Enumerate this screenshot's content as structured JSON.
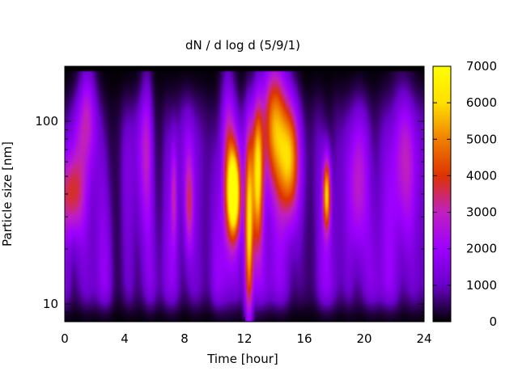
{
  "chart_data": {
    "type": "heatmap",
    "title": "dN / d log d (5/9/1)",
    "xlabel": "Time [hour]",
    "ylabel": "Particle size [nm]",
    "xlim": [
      0,
      24
    ],
    "ylim": [
      8,
      200
    ],
    "yscale": "log",
    "xticks": [
      0,
      4,
      8,
      12,
      16,
      20,
      24
    ],
    "yticks": [
      10,
      100
    ],
    "colorbar": {
      "min": 0,
      "max": 7000,
      "ticks": [
        0,
        1000,
        2000,
        3000,
        4000,
        5000,
        6000,
        7000
      ],
      "palette": [
        "#000000",
        "#6a00c8",
        "#9d00ff",
        "#c020c0",
        "#dd3300",
        "#f08000",
        "#ffe000",
        "#ffff00"
      ]
    },
    "background_level": 1800,
    "upper_band": {
      "y_from": 190,
      "y_to": 200,
      "value": 0
    },
    "features": [
      {
        "t": 0.4,
        "d": 40,
        "peak": 2600,
        "t_width": 0.6,
        "d_log_width": 0.16
      },
      {
        "t": 1.5,
        "d": 110,
        "peak": 2200,
        "t_width": 0.4,
        "d_log_width": 0.2
      },
      {
        "t": 5.5,
        "d": 80,
        "peak": 1500,
        "t_width": 0.3,
        "d_log_width": 0.3
      },
      {
        "t": 7.3,
        "d": 40,
        "peak": 1800,
        "t_width": 0.15,
        "d_log_width": 0.2
      },
      {
        "t": 8.3,
        "d": 35,
        "peak": 2000,
        "t_width": 0.2,
        "d_log_width": 0.18
      },
      {
        "t": 10.9,
        "d": 60,
        "peak": 2400,
        "t_width": 0.35,
        "d_log_width": 0.35
      },
      {
        "t": 11.3,
        "d": 40,
        "peak": 6300,
        "t_width": 0.3,
        "d_log_width": 0.16
      },
      {
        "t": 12.3,
        "d": 25,
        "peak": 5200,
        "t_width": 0.2,
        "d_log_width": 0.35
      },
      {
        "t": 12.9,
        "d": 50,
        "peak": 4600,
        "t_width": 0.25,
        "d_log_width": 0.28
      },
      {
        "t": 14.0,
        "d": 100,
        "peak": 4400,
        "t_width": 0.6,
        "d_log_width": 0.25
      },
      {
        "t": 15.0,
        "d": 60,
        "peak": 4200,
        "t_width": 0.5,
        "d_log_width": 0.22
      },
      {
        "t": 17.5,
        "d": 40,
        "peak": 4900,
        "t_width": 0.18,
        "d_log_width": 0.14
      },
      {
        "t": 19.5,
        "d": 40,
        "peak": 1500,
        "t_width": 0.4,
        "d_log_width": 0.25
      },
      {
        "t": 22.5,
        "d": 60,
        "peak": 1400,
        "t_width": 0.6,
        "d_log_width": 0.3
      }
    ],
    "dark_zones": [
      {
        "t": 3.5,
        "t_width": 0.4,
        "depth": 0.6
      },
      {
        "t": 6.3,
        "t_width": 0.3,
        "depth": 0.4
      },
      {
        "t": 9.6,
        "t_width": 0.3,
        "depth": 0.4
      },
      {
        "t": 16.2,
        "t_width": 0.5,
        "depth": 0.5
      },
      {
        "t": 18.5,
        "t_width": 0.3,
        "depth": 0.3
      }
    ]
  }
}
